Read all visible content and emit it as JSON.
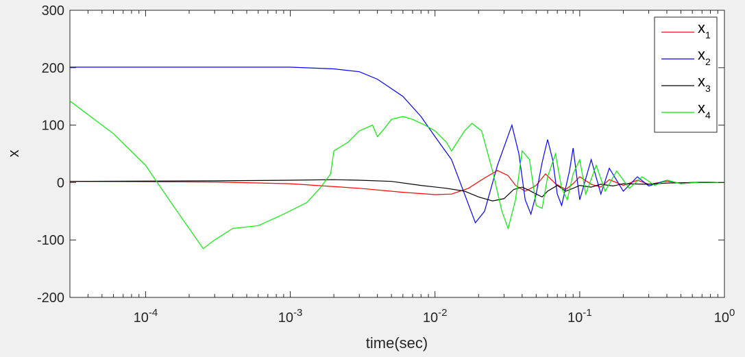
{
  "chart_data": {
    "type": "line",
    "xlabel": "time(sec)",
    "ylabel": "x",
    "xscale": "log",
    "xlim": [
      3e-05,
      1
    ],
    "ylim": [
      -200,
      300
    ],
    "xticks": [
      0.0001,
      0.001,
      0.01,
      0.1,
      1
    ],
    "xtick_labels": [
      {
        "base": "10",
        "exp": "-4"
      },
      {
        "base": "10",
        "exp": "-3"
      },
      {
        "base": "10",
        "exp": "-2"
      },
      {
        "base": "10",
        "exp": "-1"
      },
      {
        "base": "10",
        "exp": "0"
      }
    ],
    "yticks": [
      300,
      200,
      100,
      0,
      -100,
      -200
    ],
    "ytick_labels": [
      "300",
      "200",
      "100",
      "0",
      "-100",
      "-200"
    ],
    "grid": false,
    "legend_position": "top-right",
    "series": [
      {
        "name": "x",
        "subscript": "1",
        "color": "#ff0000",
        "points": [
          [
            3e-05,
            2
          ],
          [
            0.0003,
            1
          ],
          [
            0.001,
            -2
          ],
          [
            0.003,
            -10
          ],
          [
            0.006,
            -17
          ],
          [
            0.01,
            -21
          ],
          [
            0.013,
            -20
          ],
          [
            0.017,
            -10
          ],
          [
            0.022,
            8
          ],
          [
            0.027,
            21
          ],
          [
            0.032,
            12
          ],
          [
            0.036,
            -5
          ],
          [
            0.042,
            -15
          ],
          [
            0.05,
            -5
          ],
          [
            0.058,
            15
          ],
          [
            0.068,
            -2
          ],
          [
            0.08,
            -12
          ],
          [
            0.09,
            -2
          ],
          [
            0.1,
            10
          ],
          [
            0.12,
            -3
          ],
          [
            0.14,
            -8
          ],
          [
            0.16,
            5
          ],
          [
            0.2,
            -5
          ],
          [
            0.25,
            4
          ],
          [
            0.3,
            -3
          ],
          [
            0.4,
            2
          ],
          [
            0.5,
            -1
          ],
          [
            0.7,
            1
          ],
          [
            1,
            0
          ]
        ]
      },
      {
        "name": "x",
        "subscript": "2",
        "color": "#0000ff",
        "points": [
          [
            3e-05,
            201
          ],
          [
            0.0003,
            201
          ],
          [
            0.001,
            201
          ],
          [
            0.002,
            198
          ],
          [
            0.003,
            193
          ],
          [
            0.004,
            180
          ],
          [
            0.006,
            150
          ],
          [
            0.008,
            115
          ],
          [
            0.01,
            80
          ],
          [
            0.013,
            40
          ],
          [
            0.016,
            -20
          ],
          [
            0.019,
            -70
          ],
          [
            0.022,
            -50
          ],
          [
            0.027,
            30
          ],
          [
            0.034,
            100
          ],
          [
            0.038,
            50
          ],
          [
            0.042,
            -30
          ],
          [
            0.046,
            -55
          ],
          [
            0.05,
            -20
          ],
          [
            0.055,
            35
          ],
          [
            0.06,
            75
          ],
          [
            0.065,
            40
          ],
          [
            0.07,
            -20
          ],
          [
            0.075,
            -40
          ],
          [
            0.085,
            20
          ],
          [
            0.09,
            60
          ],
          [
            0.1,
            -30
          ],
          [
            0.12,
            40
          ],
          [
            0.14,
            -20
          ],
          [
            0.16,
            25
          ],
          [
            0.2,
            -15
          ],
          [
            0.25,
            10
          ],
          [
            0.3,
            -6
          ],
          [
            0.4,
            4
          ],
          [
            0.5,
            -2
          ],
          [
            0.7,
            1
          ],
          [
            1,
            0
          ]
        ]
      },
      {
        "name": "x",
        "subscript": "3",
        "color": "#000000",
        "points": [
          [
            3e-05,
            2
          ],
          [
            0.0003,
            3
          ],
          [
            0.001,
            4
          ],
          [
            0.002,
            5
          ],
          [
            0.003,
            4
          ],
          [
            0.005,
            2
          ],
          [
            0.008,
            -5
          ],
          [
            0.012,
            -10
          ],
          [
            0.016,
            -15
          ],
          [
            0.02,
            -25
          ],
          [
            0.025,
            -32
          ],
          [
            0.03,
            -28
          ],
          [
            0.035,
            -12
          ],
          [
            0.04,
            -8
          ],
          [
            0.045,
            -14
          ],
          [
            0.05,
            -20
          ],
          [
            0.055,
            -25
          ],
          [
            0.06,
            -15
          ],
          [
            0.07,
            -5
          ],
          [
            0.08,
            -15
          ],
          [
            0.09,
            -10
          ],
          [
            0.1,
            -5
          ],
          [
            0.12,
            -8
          ],
          [
            0.14,
            -3
          ],
          [
            0.17,
            -6
          ],
          [
            0.2,
            -2
          ],
          [
            0.3,
            -3
          ],
          [
            0.4,
            -1
          ],
          [
            0.6,
            0
          ],
          [
            1,
            0
          ]
        ]
      },
      {
        "name": "x",
        "subscript": "4",
        "color": "#00ee00",
        "points": [
          [
            3e-05,
            142
          ],
          [
            6e-05,
            85
          ],
          [
            0.0001,
            30
          ],
          [
            0.00015,
            -35
          ],
          [
            0.00025,
            -115
          ],
          [
            0.0003,
            -100
          ],
          [
            0.0004,
            -80
          ],
          [
            0.0006,
            -75
          ],
          [
            0.0009,
            -55
          ],
          [
            0.0013,
            -35
          ],
          [
            0.0016,
            -10
          ],
          [
            0.0019,
            15
          ],
          [
            0.002,
            55
          ],
          [
            0.0025,
            70
          ],
          [
            0.003,
            90
          ],
          [
            0.0037,
            100
          ],
          [
            0.004,
            80
          ],
          [
            0.0045,
            95
          ],
          [
            0.005,
            110
          ],
          [
            0.006,
            115
          ],
          [
            0.007,
            110
          ],
          [
            0.0085,
            100
          ],
          [
            0.01,
            90
          ],
          [
            0.012,
            70
          ],
          [
            0.013,
            55
          ],
          [
            0.016,
            90
          ],
          [
            0.018,
            103
          ],
          [
            0.021,
            90
          ],
          [
            0.025,
            20
          ],
          [
            0.029,
            -50
          ],
          [
            0.032,
            -80
          ],
          [
            0.036,
            -30
          ],
          [
            0.04,
            55
          ],
          [
            0.045,
            40
          ],
          [
            0.05,
            -40
          ],
          [
            0.055,
            -45
          ],
          [
            0.06,
            10
          ],
          [
            0.068,
            50
          ],
          [
            0.075,
            -10
          ],
          [
            0.082,
            -30
          ],
          [
            0.09,
            15
          ],
          [
            0.1,
            40
          ],
          [
            0.11,
            -20
          ],
          [
            0.13,
            30
          ],
          [
            0.15,
            -15
          ],
          [
            0.18,
            20
          ],
          [
            0.22,
            -10
          ],
          [
            0.27,
            10
          ],
          [
            0.33,
            -5
          ],
          [
            0.4,
            4
          ],
          [
            0.5,
            -2
          ],
          [
            0.7,
            1
          ],
          [
            1,
            0
          ]
        ]
      }
    ]
  }
}
